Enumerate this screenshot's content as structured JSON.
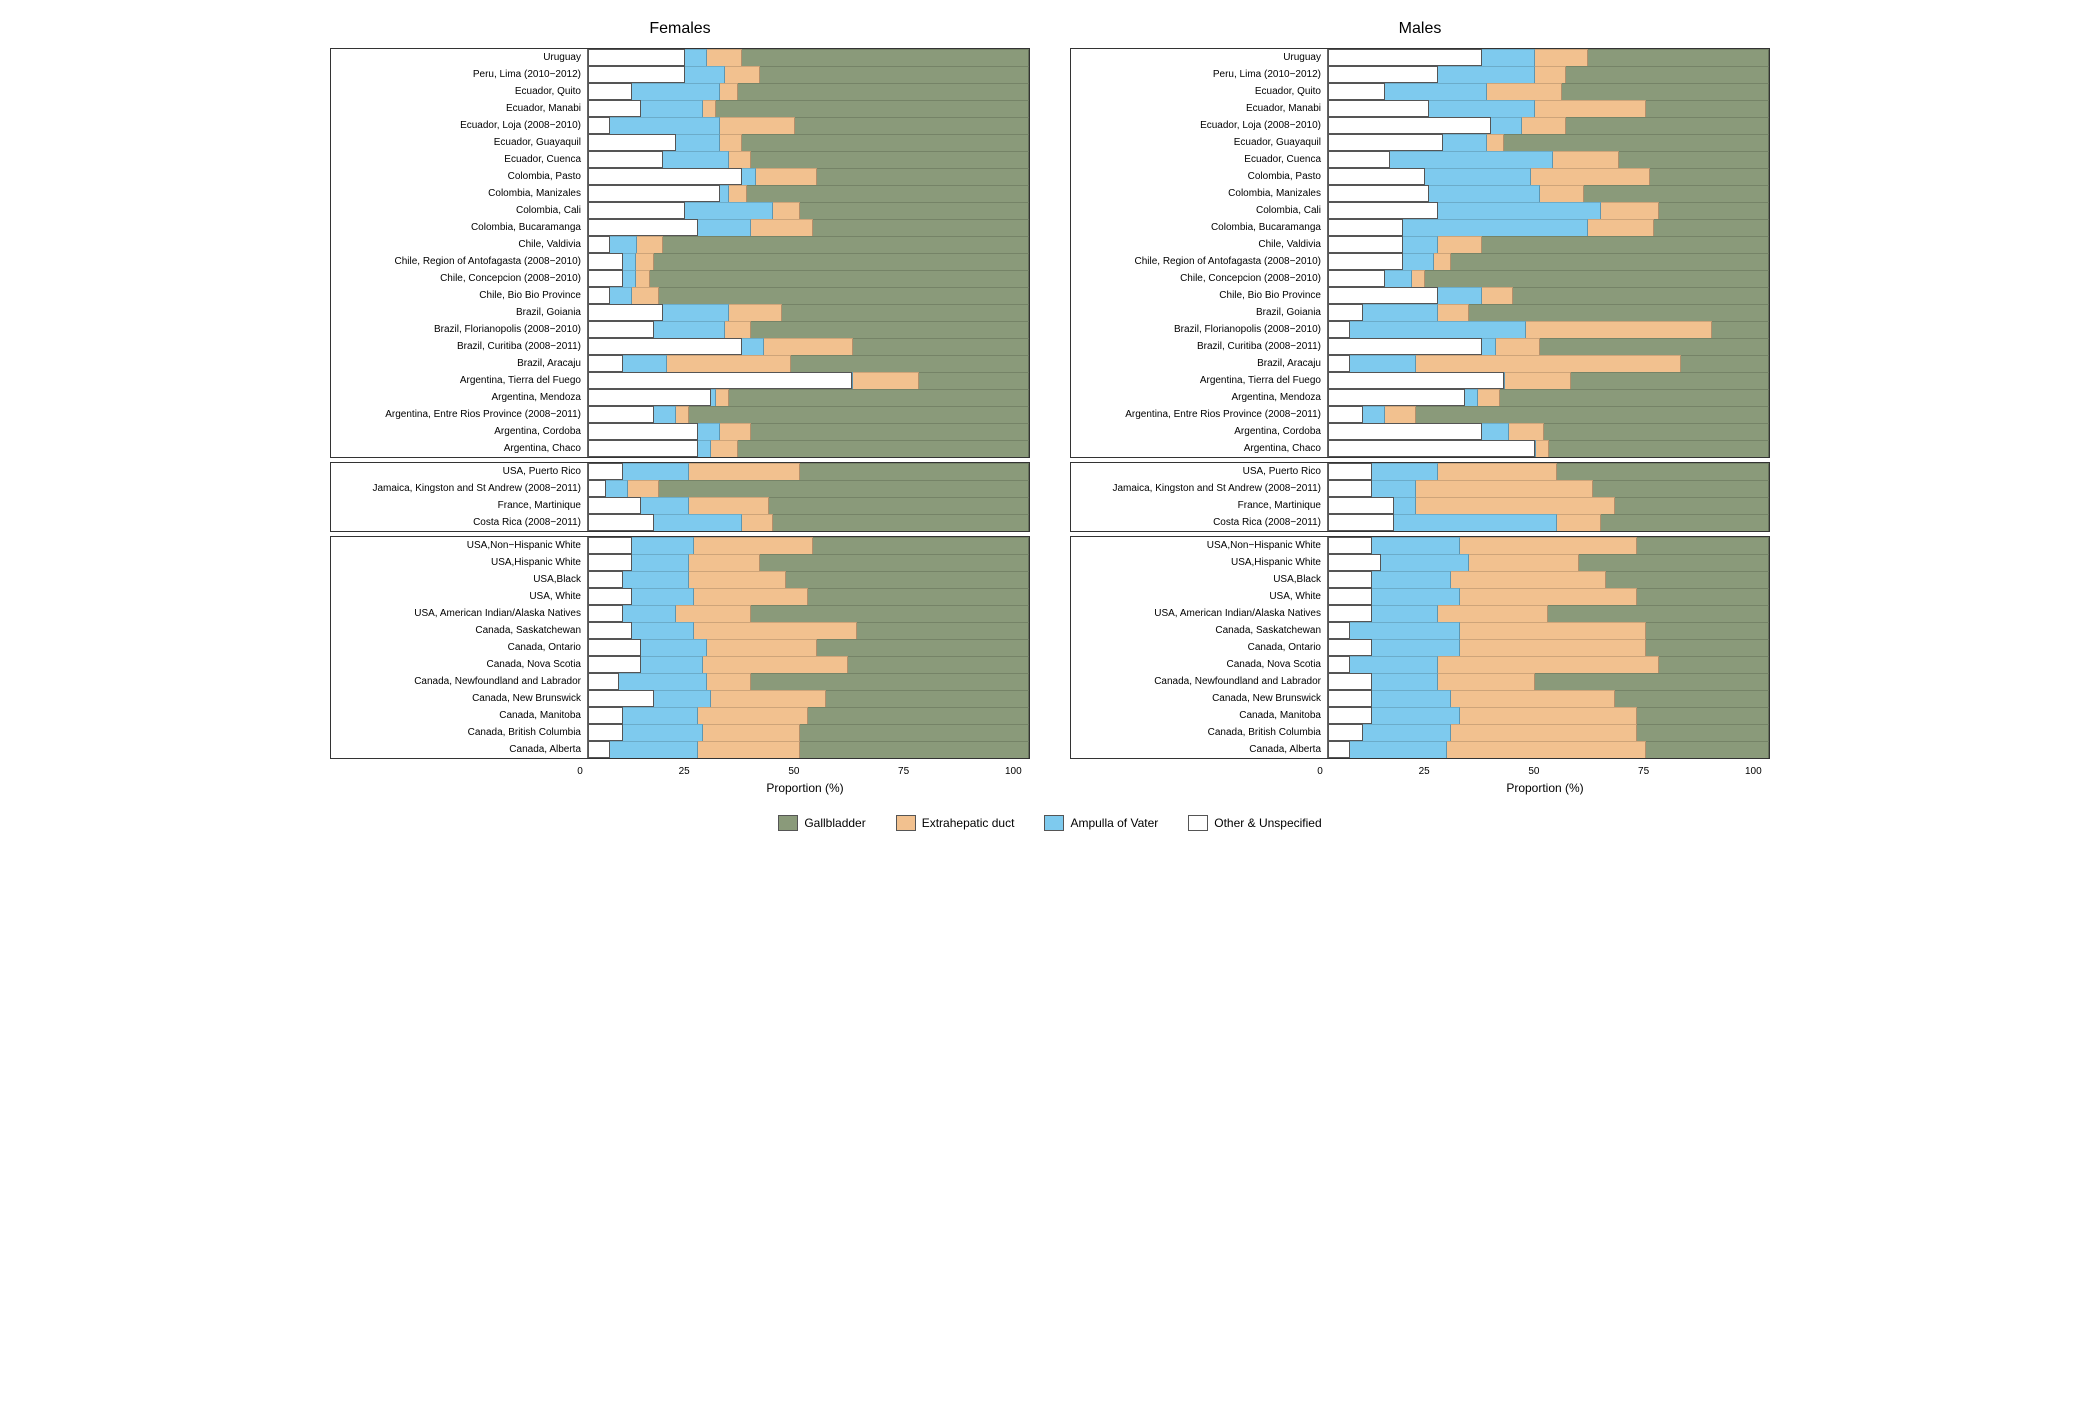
{
  "colors": {
    "gallbladder": "#8a9a7a",
    "extrahepatic": "#f2c18f",
    "ampulla": "#7ecaee",
    "other": "#ffffff",
    "border": "#333333"
  },
  "xlabel": "Proportion (%)",
  "xticks": [
    0,
    25,
    50,
    75,
    100
  ],
  "legend": [
    {
      "label": "Gallbladder",
      "color": "gallbladder"
    },
    {
      "label": "Extrahepatic duct",
      "color": "extrahepatic"
    },
    {
      "label": "Ampulla of Vater",
      "color": "ampulla"
    },
    {
      "label": "Other & Unspecified",
      "color": "other"
    }
  ],
  "regions": [
    "Uruguay",
    "Peru, Lima (2010−2012)",
    "Ecuador, Quito",
    "Ecuador, Manabi",
    "Ecuador, Loja (2008−2010)",
    "Ecuador, Guayaquil",
    "Ecuador, Cuenca",
    "Colombia, Pasto",
    "Colombia, Manizales",
    "Colombia, Cali",
    "Colombia, Bucaramanga",
    "Chile, Valdivia",
    "Chile, Region of Antofagasta (2008−2010)",
    "Chile, Concepcion (2008−2010)",
    "Chile, Bio Bio Province",
    "Brazil, Goiania",
    "Brazil, Florianopolis (2008−2010)",
    "Brazil, Curitiba (2008−2011)",
    "Brazil, Aracaju",
    "Argentina, Tierra del Fuego",
    "Argentina, Mendoza",
    "Argentina, Entre Rios Province (2008−2011)",
    "Argentina, Cordoba",
    "Argentina, Chaco",
    "USA, Puerto Rico",
    "Jamaica, Kingston and St Andrew (2008−2011)",
    "France, Martinique",
    "Costa Rica (2008−2011)",
    "USA,Non−Hispanic White",
    "USA,Hispanic White",
    "USA,Black",
    "USA, White",
    "USA, American Indian/Alaska Natives",
    "Canada, Saskatchewan",
    "Canada, Ontario",
    "Canada, Nova Scotia",
    "Canada, Newfoundland and Labrador",
    "Canada, New Brunswick",
    "Canada, Manitoba",
    "Canada, British Columbia",
    "Canada, Alberta"
  ],
  "group_sizes": [
    24,
    4,
    13
  ],
  "panels": [
    {
      "title": "Females",
      "data": [
        [
          22,
          5,
          8,
          65
        ],
        [
          22,
          9,
          8,
          61
        ],
        [
          10,
          20,
          4,
          66
        ],
        [
          12,
          14,
          3,
          71
        ],
        [
          5,
          25,
          17,
          53
        ],
        [
          20,
          10,
          5,
          65
        ],
        [
          17,
          15,
          5,
          63
        ],
        [
          35,
          3,
          14,
          48
        ],
        [
          30,
          2,
          4,
          64
        ],
        [
          22,
          20,
          6,
          52
        ],
        [
          25,
          12,
          14,
          49
        ],
        [
          5,
          6,
          6,
          83
        ],
        [
          8,
          3,
          4,
          85
        ],
        [
          8,
          3,
          3,
          86
        ],
        [
          5,
          5,
          6,
          84
        ],
        [
          17,
          15,
          12,
          56
        ],
        [
          15,
          16,
          6,
          63
        ],
        [
          35,
          5,
          20,
          40
        ],
        [
          8,
          10,
          28,
          54
        ],
        [
          60,
          0,
          15,
          25
        ],
        [
          28,
          1,
          3,
          68
        ],
        [
          15,
          5,
          3,
          77
        ],
        [
          25,
          5,
          7,
          63
        ],
        [
          25,
          3,
          6,
          66
        ],
        [
          8,
          15,
          25,
          52
        ],
        [
          4,
          5,
          7,
          84
        ],
        [
          12,
          11,
          18,
          59
        ],
        [
          15,
          20,
          7,
          58
        ],
        [
          10,
          14,
          27,
          49
        ],
        [
          10,
          13,
          16,
          61
        ],
        [
          8,
          15,
          22,
          55
        ],
        [
          10,
          14,
          26,
          50
        ],
        [
          8,
          12,
          17,
          63
        ],
        [
          10,
          14,
          37,
          39
        ],
        [
          12,
          15,
          25,
          48
        ],
        [
          12,
          14,
          33,
          41
        ],
        [
          7,
          20,
          10,
          63
        ],
        [
          15,
          13,
          26,
          46
        ],
        [
          8,
          17,
          25,
          50
        ],
        [
          8,
          18,
          22,
          52
        ],
        [
          5,
          20,
          23,
          52
        ]
      ]
    },
    {
      "title": "Males",
      "data": [
        [
          35,
          12,
          12,
          41
        ],
        [
          25,
          22,
          7,
          46
        ],
        [
          13,
          23,
          17,
          47
        ],
        [
          23,
          24,
          25,
          28
        ],
        [
          37,
          7,
          10,
          46
        ],
        [
          26,
          10,
          4,
          60
        ],
        [
          14,
          37,
          15,
          34
        ],
        [
          22,
          24,
          27,
          27
        ],
        [
          23,
          25,
          10,
          42
        ],
        [
          25,
          37,
          13,
          25
        ],
        [
          17,
          42,
          15,
          26
        ],
        [
          17,
          8,
          10,
          65
        ],
        [
          17,
          7,
          4,
          72
        ],
        [
          13,
          6,
          3,
          78
        ],
        [
          25,
          10,
          7,
          58
        ],
        [
          8,
          17,
          7,
          68
        ],
        [
          5,
          40,
          42,
          13
        ],
        [
          35,
          3,
          10,
          52
        ],
        [
          5,
          15,
          60,
          20
        ],
        [
          40,
          0,
          15,
          45
        ],
        [
          31,
          3,
          5,
          61
        ],
        [
          8,
          5,
          7,
          80
        ],
        [
          35,
          6,
          8,
          51
        ],
        [
          47,
          0,
          3,
          50
        ],
        [
          10,
          15,
          27,
          48
        ],
        [
          10,
          10,
          40,
          40
        ],
        [
          15,
          5,
          45,
          35
        ],
        [
          15,
          37,
          10,
          38
        ],
        [
          10,
          20,
          40,
          30
        ],
        [
          12,
          20,
          25,
          43
        ],
        [
          10,
          18,
          35,
          37
        ],
        [
          10,
          20,
          40,
          30
        ],
        [
          10,
          15,
          25,
          50
        ],
        [
          5,
          25,
          42,
          28
        ],
        [
          10,
          20,
          42,
          28
        ],
        [
          5,
          20,
          50,
          25
        ],
        [
          10,
          15,
          22,
          53
        ],
        [
          10,
          18,
          37,
          35
        ],
        [
          10,
          20,
          40,
          30
        ],
        [
          8,
          20,
          42,
          30
        ],
        [
          5,
          22,
          45,
          28
        ]
      ]
    }
  ]
}
